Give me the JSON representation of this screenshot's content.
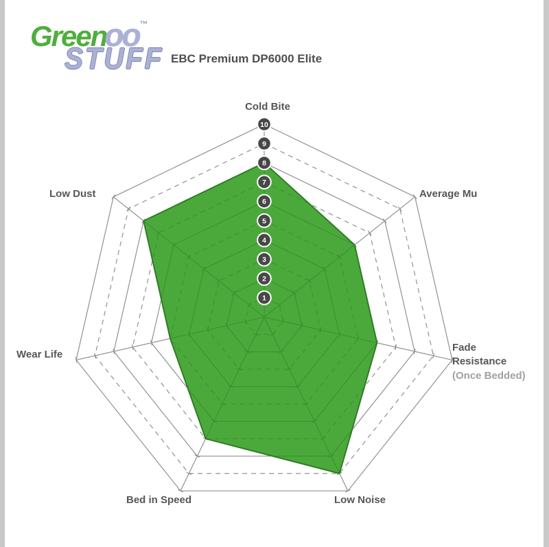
{
  "page": {
    "background_color": "#ffffff",
    "edge_strip_color": "#c9c9c9"
  },
  "logo": {
    "word_green": "Green",
    "word_oo": "oo",
    "trademark": "™",
    "word_stuff": "STUFF",
    "green_color": "#4fae3c",
    "lavender_color": "#abb0d6"
  },
  "header": {
    "title": "EBC Premium DP6000 Elite"
  },
  "chart_data": {
    "type": "radar",
    "title": "EBC Premium DP6000 Elite",
    "axes": [
      {
        "label": "Cold Bite",
        "value": 8
      },
      {
        "label": "Average Mu",
        "value": 6
      },
      {
        "label": "Fade Resistance",
        "sublabel": "(Once Bedded)",
        "value": 6
      },
      {
        "label": "Low Noise",
        "value": 9
      },
      {
        "label": "Bed in Speed",
        "value": 7
      },
      {
        "label": "Wear Life",
        "value": 5
      },
      {
        "label": "Low Dust",
        "value": 8
      }
    ],
    "scale": {
      "min": 0,
      "max": 10,
      "ring_step": 1,
      "tick_labels": [
        "1",
        "2",
        "3",
        "4",
        "5",
        "6",
        "7",
        "8",
        "9",
        "10"
      ]
    },
    "layout": {
      "shape": "heptagon",
      "first_axis": "Cold Bite at top, axes clockwise",
      "rings": "even rings solid, odd rings dashed",
      "tick_discs": "numbered discs 1-10 along Cold Bite spoke",
      "legend": "none"
    },
    "series_fill_color": "#4BA93C",
    "series_edge_color": "#2E7D25",
    "grid_color": "#909090",
    "tick_circle_color": "#474747",
    "tick_number_color": "#ffffff",
    "label_color": "#55565a",
    "sublabel_color": "#9fa1a4"
  }
}
